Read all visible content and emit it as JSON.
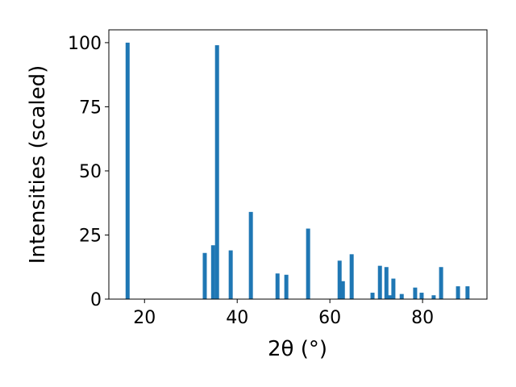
{
  "chart_data": {
    "type": "bar",
    "xlabel": "2θ (°)",
    "ylabel": "Intensities (scaled)",
    "x": [
      16.35,
      33.0,
      34.8,
      35.65,
      38.6,
      42.95,
      48.7,
      50.6,
      55.3,
      62.1,
      62.8,
      64.7,
      69.2,
      70.8,
      72.2,
      73.0,
      73.7,
      75.5,
      78.4,
      79.8,
      82.4,
      84.0,
      87.65,
      89.7
    ],
    "values": [
      100,
      18,
      21,
      99,
      19,
      34,
      10,
      9.5,
      27.5,
      15,
      7,
      17.5,
      2.5,
      13,
      12.5,
      1.5,
      8,
      2,
      4.5,
      2.5,
      1.5,
      12.5,
      5,
      5
    ],
    "color": "#1f77b4",
    "xlim": [
      12.3,
      93.9
    ],
    "xticks": [
      20,
      40,
      60,
      80
    ],
    "ylim": [
      0,
      105
    ],
    "yticks": [
      0,
      25,
      50,
      75,
      100
    ],
    "grid": false
  }
}
